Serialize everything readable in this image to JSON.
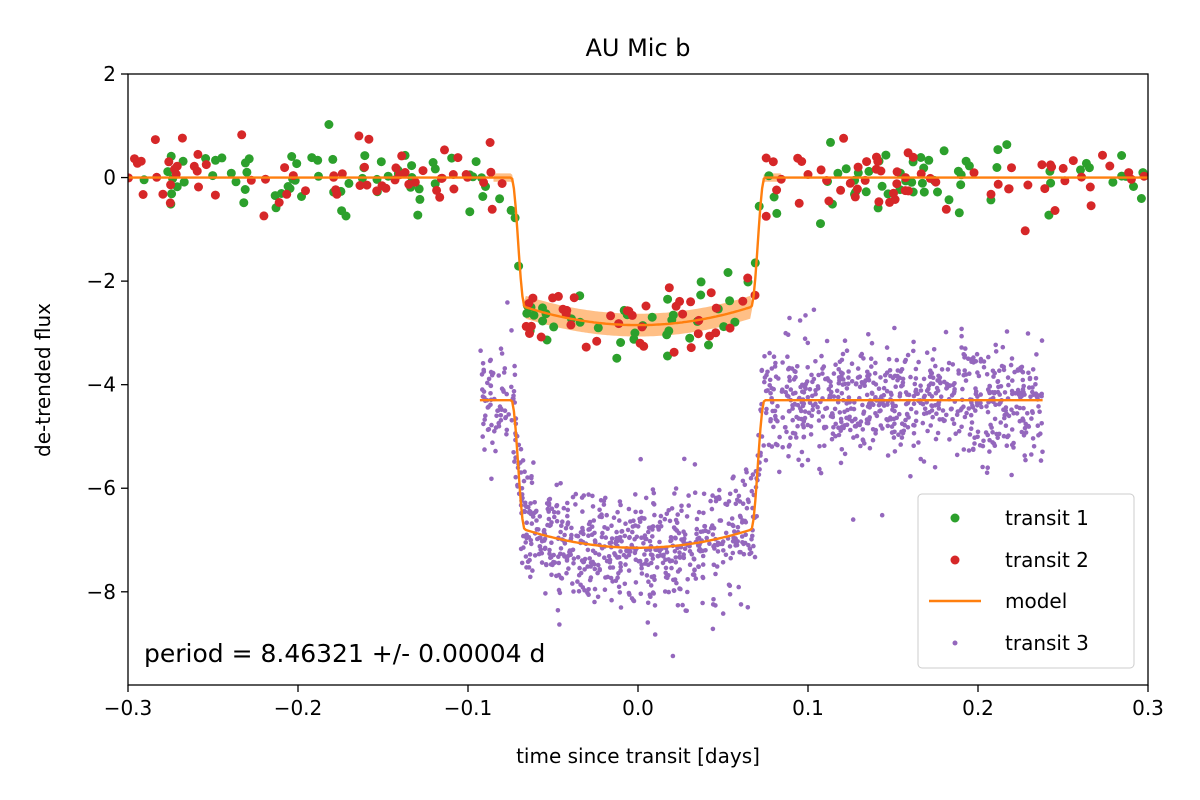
{
  "chart_data": {
    "type": "scatter",
    "title": "AU Mic b",
    "xlabel": "time since transit [days]",
    "ylabel": "de-trended flux",
    "xlim": [
      -0.3,
      0.3
    ],
    "ylim": [
      -9.8,
      2.0
    ],
    "x_ticks": [
      -0.3,
      -0.2,
      -0.1,
      0.0,
      0.1,
      0.2,
      0.3
    ],
    "x_tick_labels": [
      "−0.3",
      "−0.2",
      "−0.1",
      "0.0",
      "0.1",
      "0.2",
      "0.3"
    ],
    "y_ticks": [
      2,
      0,
      -2,
      -4,
      -6,
      -8
    ],
    "y_tick_labels": [
      "2",
      "0",
      "−2",
      "−4",
      "−6",
      "−8"
    ],
    "grid": false,
    "legend_position": "bottom-right",
    "annotation": "period = 8.46321 +/- 0.00004 d",
    "transit_model": {
      "ingress_start": -0.0745,
      "ingress_end": -0.0665,
      "egress_start": 0.0665,
      "egress_end": 0.0745,
      "depth_center": 2.85,
      "depth_edge": 2.5
    },
    "series": [
      {
        "name": "transit 1",
        "color": "#2ca02c",
        "marker": "dot",
        "x_range": [
          -0.3,
          0.3
        ],
        "baseline": 0.0,
        "scatter": 0.32,
        "count": 170
      },
      {
        "name": "transit 2",
        "color": "#d62728",
        "marker": "dot",
        "x_range": [
          -0.3,
          0.3
        ],
        "baseline": 0.0,
        "scatter": 0.32,
        "count": 170
      },
      {
        "name": "model",
        "color": "#ff7f0e",
        "marker": "line",
        "segments": [
          {
            "x_range": [
              -0.3,
              0.3
            ],
            "baseline": 0.0
          },
          {
            "x_range": [
              -0.093,
              0.238
            ],
            "baseline": -4.3
          }
        ]
      },
      {
        "name": "transit 3",
        "color": "#9467bd",
        "marker": "small-dot",
        "x_range": [
          -0.093,
          0.238
        ],
        "baseline": -4.3,
        "scatter": 0.55,
        "count": 1500
      }
    ]
  }
}
